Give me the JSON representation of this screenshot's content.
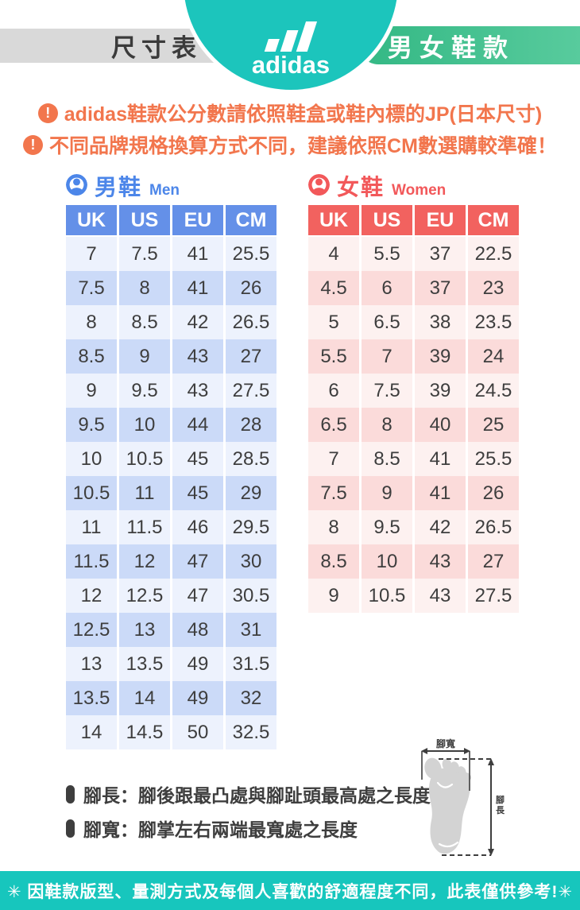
{
  "header": {
    "left_tab": "尺寸表",
    "brand": "adidas",
    "right_tab": "男女鞋款"
  },
  "notices": [
    {
      "text": "adidas鞋款公分數請依照鞋盒或鞋內標的JP(日本尺寸)"
    },
    {
      "text": "不同品牌規格換算方式不同，建議依照CM數選購較準確！"
    }
  ],
  "men_table": {
    "title_zh": "男鞋",
    "title_en": "Men",
    "columns": [
      "UK",
      "US",
      "EU",
      "CM"
    ],
    "rows": [
      [
        "7",
        "7.5",
        "41",
        "25.5"
      ],
      [
        "7.5",
        "8",
        "41",
        "26"
      ],
      [
        "8",
        "8.5",
        "42",
        "26.5"
      ],
      [
        "8.5",
        "9",
        "43",
        "27"
      ],
      [
        "9",
        "9.5",
        "43",
        "27.5"
      ],
      [
        "9.5",
        "10",
        "44",
        "28"
      ],
      [
        "10",
        "10.5",
        "45",
        "28.5"
      ],
      [
        "10.5",
        "11",
        "45",
        "29"
      ],
      [
        "11",
        "11.5",
        "46",
        "29.5"
      ],
      [
        "11.5",
        "12",
        "47",
        "30"
      ],
      [
        "12",
        "12.5",
        "47",
        "30.5"
      ],
      [
        "12.5",
        "13",
        "48",
        "31"
      ],
      [
        "13",
        "13.5",
        "49",
        "31.5"
      ],
      [
        "13.5",
        "14",
        "49",
        "32"
      ],
      [
        "14",
        "14.5",
        "50",
        "32.5"
      ]
    ]
  },
  "women_table": {
    "title_zh": "女鞋",
    "title_en": "Women",
    "columns": [
      "UK",
      "US",
      "EU",
      "CM"
    ],
    "rows": [
      [
        "4",
        "5.5",
        "37",
        "22.5"
      ],
      [
        "4.5",
        "6",
        "37",
        "23"
      ],
      [
        "5",
        "6.5",
        "38",
        "23.5"
      ],
      [
        "5.5",
        "7",
        "39",
        "24"
      ],
      [
        "6",
        "7.5",
        "39",
        "24.5"
      ],
      [
        "6.5",
        "8",
        "40",
        "25"
      ],
      [
        "7",
        "8.5",
        "41",
        "25.5"
      ],
      [
        "7.5",
        "9",
        "41",
        "26"
      ],
      [
        "8",
        "9.5",
        "42",
        "26.5"
      ],
      [
        "8.5",
        "10",
        "43",
        "27"
      ],
      [
        "9",
        "10.5",
        "43",
        "27.5"
      ]
    ]
  },
  "footnotes": [
    {
      "text": "腳長：腳後跟最凸處與腳趾頭最高處之長度"
    },
    {
      "text": "腳寬：腳掌左右兩端最寬處之長度"
    }
  ],
  "diagram": {
    "width_label": "腳寬",
    "length_label": "腳長"
  },
  "footer": {
    "text": "✳ 因鞋款版型、量測方式及每個人喜歡的舒適程度不同，此表僅供參考!✳"
  },
  "colors": {
    "teal": "#1CC5BC",
    "footer_teal": "#17C6BD",
    "green_tab": "#3FBF8E",
    "gray_tab": "#D9D9D9",
    "orange": "#F2764D",
    "men_header": "#6490E8",
    "men_title": "#4C86E9",
    "men_row_light": "#EDF2FD",
    "men_row_dark": "#CBDAF8",
    "women_header": "#F2625F",
    "women_title": "#F2585A",
    "women_row_light": "#FDF1F0",
    "women_row_dark": "#FBDBDA",
    "text_dark": "#3E3E3E",
    "foot_gray": "#D3D3D3"
  }
}
